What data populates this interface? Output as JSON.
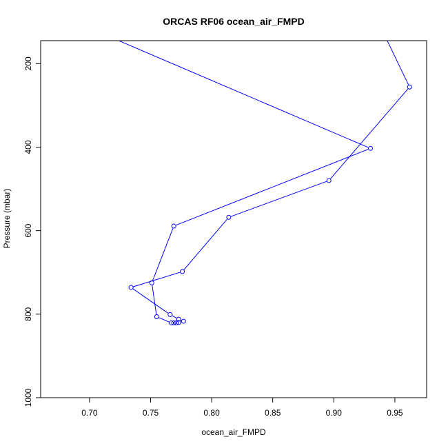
{
  "chart_data": {
    "type": "line",
    "title": "ORCAS RF06 ocean_air_FMPD",
    "xlabel": "ocean_air_FMPD",
    "ylabel": "Pressure (mbar)",
    "xlim": [
      0.66,
      0.976
    ],
    "ylim": [
      1000,
      145
    ],
    "y_reversed": true,
    "grid": false,
    "legend": "none",
    "xticks": [
      0.7,
      0.75,
      0.8,
      0.85,
      0.9,
      0.95
    ],
    "xtick_labels": [
      "0.70",
      "0.75",
      "0.80",
      "0.85",
      "0.90",
      "0.95"
    ],
    "yticks": [
      200,
      400,
      600,
      800,
      1000
    ],
    "ytick_labels": [
      "200",
      "400",
      "600",
      "800",
      "1000"
    ],
    "series": [
      {
        "color": "#0000ff",
        "marker": "open-circle",
        "points": [
          {
            "x": 0.938,
            "y": 110,
            "marker": false
          },
          {
            "x": 0.962,
            "y": 256,
            "marker": true
          },
          {
            "x": 0.896,
            "y": 480,
            "marker": true
          },
          {
            "x": 0.814,
            "y": 568,
            "marker": true
          },
          {
            "x": 0.776,
            "y": 698,
            "marker": true
          },
          {
            "x": 0.734,
            "y": 736,
            "marker": true
          },
          {
            "x": 0.766,
            "y": 801,
            "marker": true
          },
          {
            "x": 0.773,
            "y": 812,
            "marker": true
          },
          {
            "x": 0.777,
            "y": 817,
            "marker": true
          },
          {
            "x": 0.773,
            "y": 820,
            "marker": true
          },
          {
            "x": 0.771,
            "y": 821,
            "marker": true
          },
          {
            "x": 0.769,
            "y": 821,
            "marker": true
          },
          {
            "x": 0.767,
            "y": 821,
            "marker": true
          },
          {
            "x": 0.755,
            "y": 806,
            "marker": true
          },
          {
            "x": 0.751,
            "y": 725,
            "marker": true
          },
          {
            "x": 0.769,
            "y": 589,
            "marker": true
          },
          {
            "x": 0.93,
            "y": 403,
            "marker": true
          },
          {
            "x": 0.68,
            "y": 90,
            "marker": false
          }
        ]
      }
    ]
  }
}
